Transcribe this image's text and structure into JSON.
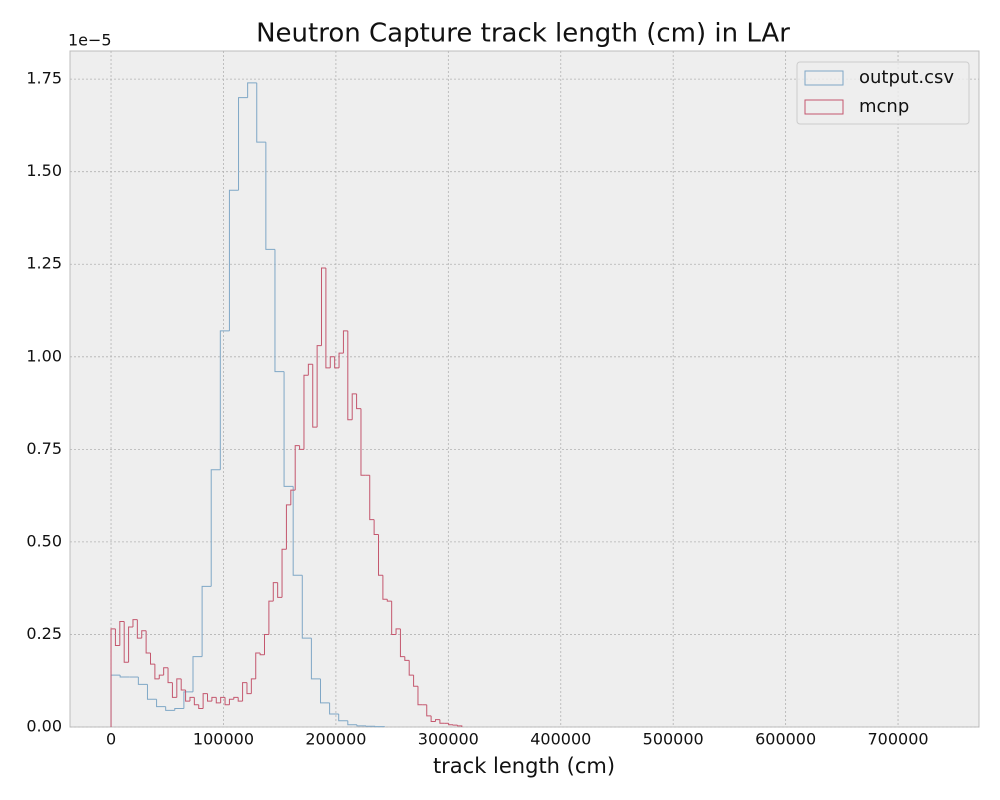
{
  "chart_data": {
    "type": "histogram",
    "title": "Neutron Capture track length (cm) in LAr",
    "xlabel": "track length (cm)",
    "y_offset_label": "1e−5",
    "xlim": [
      -36500,
      772000
    ],
    "ylim": [
      0,
      1.826e-05
    ],
    "xticks": [
      0,
      100000,
      200000,
      300000,
      400000,
      500000,
      600000,
      700000
    ],
    "yticks": [
      {
        "value": 0,
        "label": "0.00"
      },
      {
        "value": 2.5e-06,
        "label": "0.25"
      },
      {
        "value": 5e-06,
        "label": "0.50"
      },
      {
        "value": 7.5e-06,
        "label": "0.75"
      },
      {
        "value": 1e-05,
        "label": "1.00"
      },
      {
        "value": 1.25e-05,
        "label": "1.25"
      },
      {
        "value": 1.5e-05,
        "label": "1.50"
      },
      {
        "value": 1.75e-05,
        "label": "1.75"
      }
    ],
    "grid": true,
    "legend": "upper right",
    "series": [
      {
        "name": "output.csv",
        "color": "#7fa7c6",
        "bins": [
          0,
          8100,
          16200,
          24300,
          32400,
          40500,
          48600,
          56700,
          64800,
          72900,
          81000,
          89100,
          97200,
          105300,
          113400,
          121500,
          129600,
          137700,
          145800,
          153900,
          162000,
          170100,
          178200,
          186300,
          194400,
          202500,
          210600,
          218700,
          226800,
          234900,
          243000
        ],
        "values": [
          1.4e-06,
          1.35e-06,
          1.35e-06,
          1.15e-06,
          7.5e-07,
          5.5e-07,
          4.5e-07,
          5e-07,
          9.5e-07,
          1.9e-06,
          3.8e-06,
          6.95e-06,
          1.07e-05,
          1.45e-05,
          1.7e-05,
          1.74e-05,
          1.58e-05,
          1.29e-05,
          9.6e-06,
          6.5e-06,
          4.1e-06,
          2.4e-06,
          1.3e-06,
          6.5e-07,
          3.5e-07,
          1.7e-07,
          6e-08,
          3e-08,
          2e-08,
          1e-08
        ]
      },
      {
        "name": "mcnp",
        "color": "#c4576e",
        "bins": [
          0,
          3900,
          7800,
          11700,
          15600,
          19500,
          23400,
          27300,
          31200,
          35100,
          39000,
          42900,
          46800,
          50700,
          54600,
          58500,
          62400,
          66300,
          70200,
          74100,
          78000,
          81900,
          85800,
          89700,
          93600,
          97500,
          101400,
          105300,
          109200,
          113100,
          117000,
          120900,
          124800,
          128700,
          132600,
          136500,
          140400,
          144300,
          148200,
          152100,
          156000,
          159900,
          163800,
          167700,
          171600,
          175500,
          179400,
          183300,
          187200,
          191100,
          195000,
          198900,
          202800,
          206700,
          210600,
          214500,
          218400,
          222300,
          226200,
          230100,
          234000,
          237900,
          241800,
          245700,
          249600,
          253500,
          257400,
          261300,
          265200,
          269100,
          273000,
          276900,
          280800,
          284700,
          288600,
          292500,
          296400,
          300300,
          304200,
          308100,
          312000
        ],
        "values": [
          2.65e-06,
          2.2e-06,
          2.85e-06,
          1.75e-06,
          2.7e-06,
          2.9e-06,
          2.4e-06,
          2.6e-06,
          2e-06,
          1.7e-06,
          1.3e-06,
          1.4e-06,
          1.6e-06,
          1.2e-06,
          8e-07,
          1.3e-06,
          1e-06,
          7e-07,
          8e-07,
          6e-07,
          5e-07,
          9e-07,
          7e-07,
          8e-07,
          6.5e-07,
          8e-07,
          6e-07,
          7.5e-07,
          8e-07,
          7e-07,
          1.2e-06,
          9e-07,
          1.3e-06,
          2e-06,
          1.95e-06,
          2.5e-06,
          3.4e-06,
          3.9e-06,
          3.5e-06,
          4.8e-06,
          6e-06,
          6.4e-06,
          7.6e-06,
          7.5e-06,
          9.5e-06,
          9.8e-06,
          8.1e-06,
          1.03e-05,
          1.24e-05,
          9.7e-06,
          1e-05,
          9.7e-06,
          1.01e-05,
          1.07e-05,
          8.3e-06,
          9e-06,
          8.6e-06,
          6.8e-06,
          6.8e-06,
          5.6e-06,
          5.2e-06,
          4.1e-06,
          3.45e-06,
          3.4e-06,
          2.5e-06,
          2.65e-06,
          1.9e-06,
          1.8e-06,
          1.4e-06,
          1.1e-06,
          6e-07,
          6e-07,
          3e-07,
          1.5e-07,
          2e-07,
          1e-07,
          1e-07,
          6e-08,
          5e-08,
          3e-08
        ]
      }
    ]
  }
}
